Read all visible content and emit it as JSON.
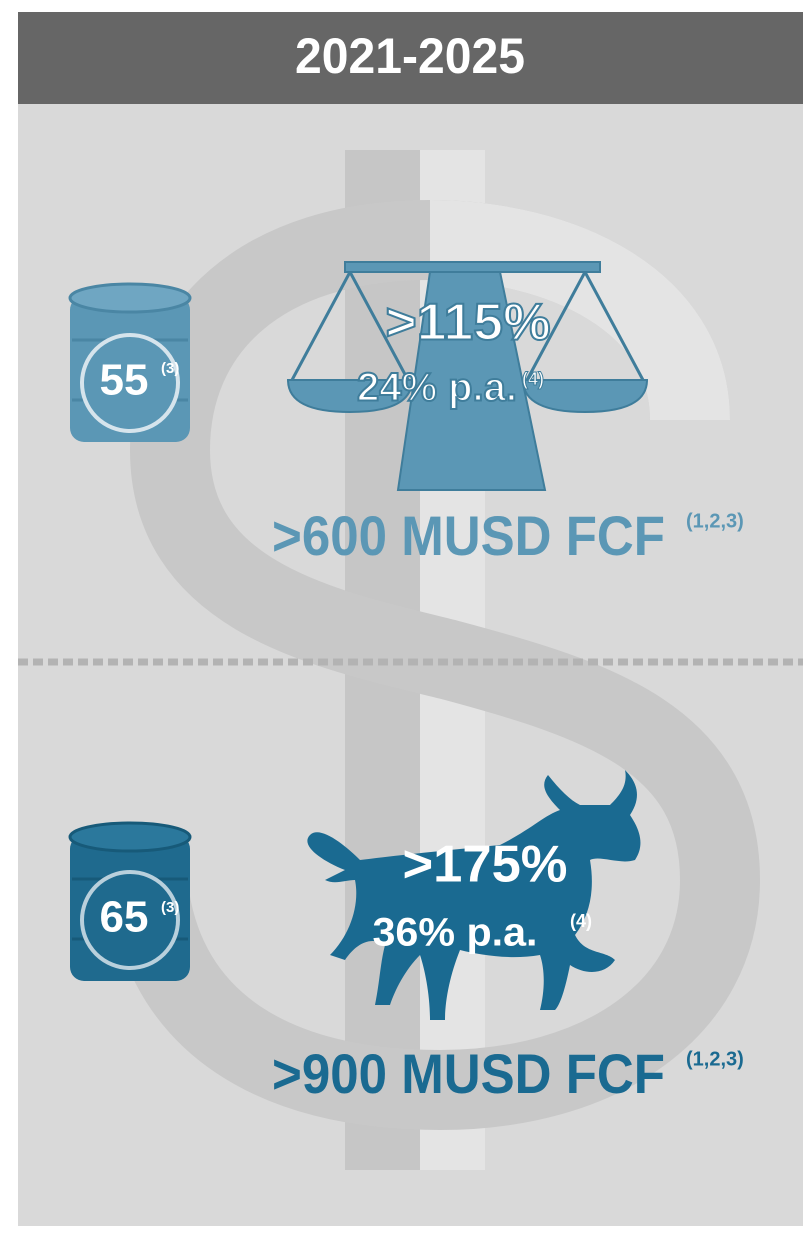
{
  "header": {
    "title": "2021-2025"
  },
  "scenarios": [
    {
      "oil_price": "55",
      "oil_note": "(3)",
      "return": ">115%",
      "annual": "24% p.a.",
      "annual_note": "(4)",
      "fcf": ">600 MUSD FCF",
      "fcf_note": "(1,2,3)"
    },
    {
      "oil_price": "65",
      "oil_note": "(3)",
      "return": ">175%",
      "annual": "36% p.a.",
      "annual_note": "(4)",
      "fcf": ">900 MUSD FCF",
      "fcf_note": "(1,2,3)"
    }
  ]
}
